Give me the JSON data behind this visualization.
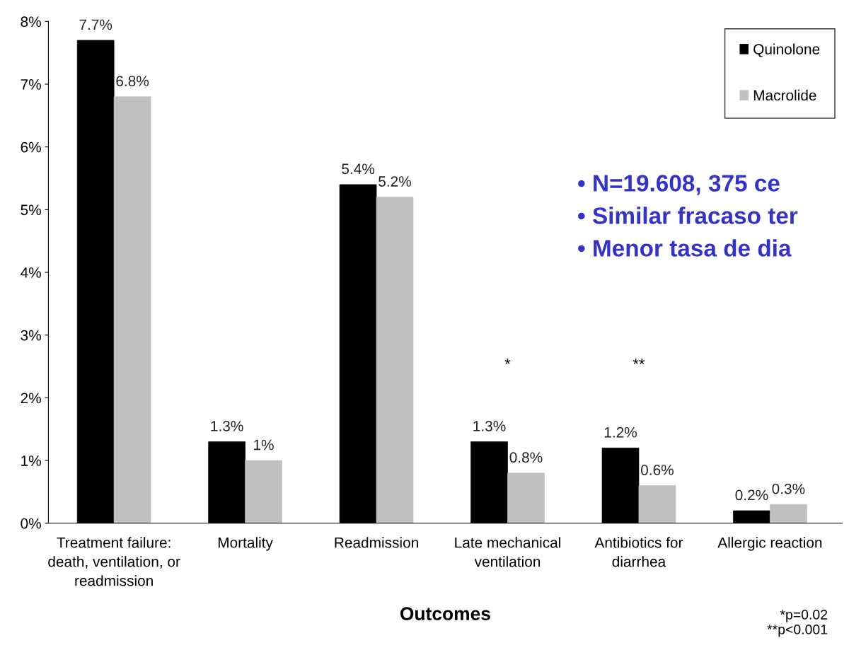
{
  "chart_data": {
    "type": "bar",
    "xlabel": "Outcomes",
    "categories": [
      "Treatment failure:\ndeath, ventilation, or\nreadmission",
      "Mortality",
      "Readmission",
      "Late mechanical\nventilation",
      "Antibiotics for\ndiarrhea",
      "Allergic reaction"
    ],
    "series": [
      {
        "name": "Quinolone",
        "color": "#000000",
        "values": [
          7.7,
          1.3,
          5.4,
          1.3,
          1.2,
          0.2
        ],
        "value_labels": [
          "7.7%",
          "1.3%",
          "5.4%",
          "1.3%",
          "1.2%",
          "0.2%"
        ]
      },
      {
        "name": "Macrolide",
        "color": "#c0c0c0",
        "values": [
          6.8,
          1.0,
          5.2,
          0.8,
          0.6,
          0.3
        ],
        "value_labels": [
          "6.8%",
          "1%",
          "5.2%",
          "0.8%",
          "0.6%",
          "0.3%"
        ]
      }
    ],
    "ylim": [
      0,
      8
    ],
    "yticks": [
      {
        "value": 0,
        "label": "0%"
      },
      {
        "value": 1,
        "label": "1%"
      },
      {
        "value": 2,
        "label": "2%"
      },
      {
        "value": 3,
        "label": "3%"
      },
      {
        "value": 4,
        "label": "4%"
      },
      {
        "value": 5,
        "label": "5%"
      },
      {
        "value": 6,
        "label": "6%"
      },
      {
        "value": 7,
        "label": "7%"
      },
      {
        "value": 8,
        "label": "8%"
      }
    ],
    "grid": false,
    "legend": "top right",
    "annotations": [
      "*",
      "**",
      "*p=0.02\n**p<0.001",
      "• N=19.608, 375 ce",
      "• Similar fracaso ter",
      "• Menor tasa de dia"
    ]
  }
}
